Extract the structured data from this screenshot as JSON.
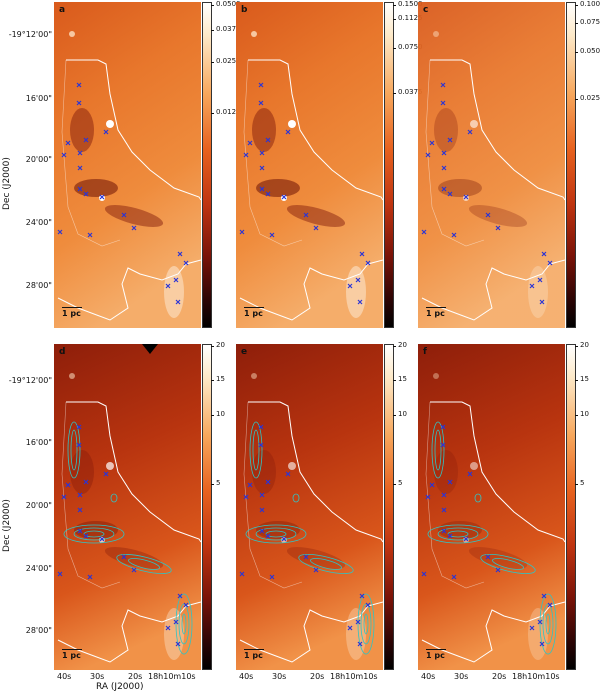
{
  "figure": {
    "top_colorbars": [
      [
        "0.0500",
        "0.0375",
        "0.0250",
        "0.0125"
      ],
      [
        "0.1500",
        "0.1125",
        "0.0750",
        "0.0375"
      ],
      [
        "0.100",
        "0.075",
        "0.050",
        "0.025"
      ]
    ],
    "bottom_colorbar": [
      "20",
      "15",
      "10",
      "5"
    ],
    "panel_labels": [
      "a",
      "b",
      "c",
      "d",
      "e",
      "f"
    ],
    "scale_bar": "1 pc",
    "dec_ticks": [
      "-19°12'00\"",
      "16'00\"",
      "20'00\"",
      "24'00\"",
      "28'00\""
    ],
    "ra_ticks": [
      "40s",
      "30s",
      "20s",
      "18h10m10s"
    ],
    "ylabel": "Dec (J2000)",
    "xlabel": "RA (J2000)",
    "colors": {
      "marker": "#2b35d6",
      "contour": "#2fc4c4",
      "outline": "#ffffff"
    }
  }
}
